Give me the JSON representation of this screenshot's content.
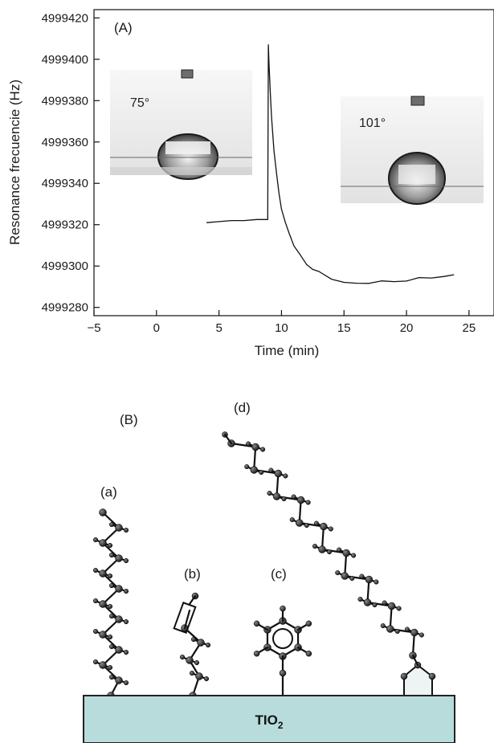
{
  "panel_a_label": "(A)",
  "panel_b_label": "(B)",
  "chart_data": {
    "type": "line",
    "xlabel": "Time (min)",
    "ylabel": "Resonance frecuencie (Hz)",
    "xlim": [
      -5,
      27
    ],
    "ylim": [
      4999276,
      4999424
    ],
    "xticks": [
      -5,
      0,
      5,
      10,
      15,
      20,
      25
    ],
    "yticks": [
      4999280,
      4999300,
      4999320,
      4999340,
      4999360,
      4999380,
      4999400,
      4999420
    ],
    "xtick_labels": [
      "−5",
      "0",
      "5",
      "10",
      "15",
      "20",
      "25"
    ],
    "grid": false,
    "series": [
      {
        "x": [
          4.0,
          5.0,
          6.0,
          7.0,
          8.0,
          8.9,
          8.95,
          9.0,
          9.1,
          9.2,
          9.4,
          9.6,
          9.8,
          10.0,
          10.3,
          10.6,
          11.0,
          11.5,
          12.0,
          12.5,
          13.0,
          14.0,
          15.0,
          16.0,
          17.0,
          18.0,
          19.0,
          20.0,
          21.0,
          22.0,
          23.0,
          23.8
        ],
        "y": [
          4999321,
          4999321.5,
          4999322,
          4999322,
          4999322.5,
          4999322.5,
          4999407,
          4999398,
          4999385,
          4999372,
          4999356,
          4999345,
          4999335,
          4999328,
          4999321,
          4999316,
          4999310,
          4999305,
          4999301,
          4999298.5,
          4999297,
          4999294,
          4999292,
          4999291.5,
          4999292,
          4999292.5,
          4999292.5,
          4999293,
          4999294,
          4999294.5,
          4999295,
          4999295.5
        ]
      }
    ]
  },
  "insets": {
    "left": {
      "angle": "75°"
    },
    "right": {
      "angle": "101°"
    }
  },
  "molecules": {
    "a": "(a)",
    "b": "(b)",
    "c": "(c)",
    "d": "(d)"
  },
  "substrate": {
    "main": "TIO",
    "subscript": "2",
    "color": "#b8dcdc"
  }
}
